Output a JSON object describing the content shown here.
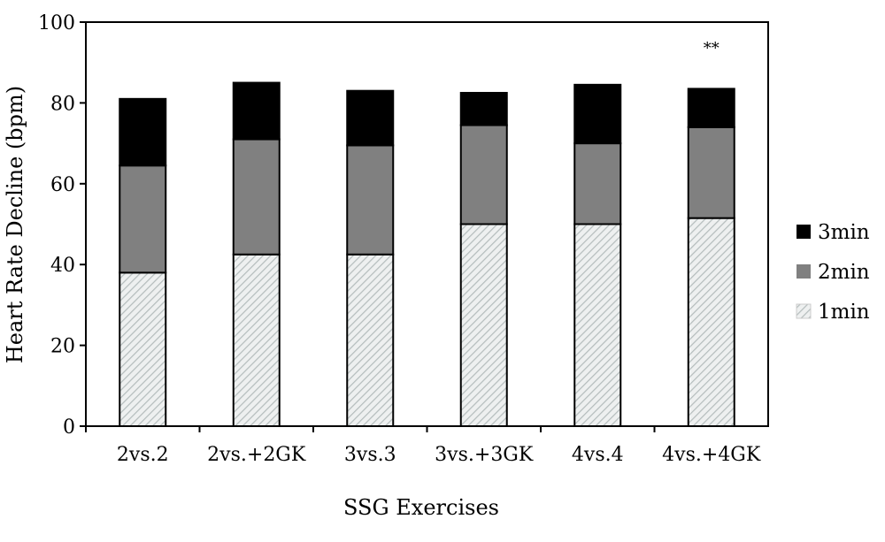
{
  "chart_data": {
    "type": "bar",
    "stacked": true,
    "title": "",
    "xlabel": "SSG Exercises",
    "ylabel": "Heart Rate Decline (bpm)",
    "ylim": [
      0,
      100
    ],
    "yticks": [
      0,
      20,
      40,
      60,
      80,
      100
    ],
    "grid": false,
    "legend_position": "right",
    "categories": [
      "2vs.2",
      "2vs.+2GK",
      "3vs.3",
      "3vs.+3GK",
      "4vs.4",
      "4vs.+4GK"
    ],
    "series": [
      {
        "name": "1min",
        "values": [
          38,
          42.5,
          42.5,
          50,
          50,
          51.5
        ],
        "color": "#e6e9e9",
        "pattern": "diagonal-hatch"
      },
      {
        "name": "2min",
        "values": [
          26.5,
          28.5,
          27,
          24.5,
          20,
          22.5
        ],
        "color": "#808080"
      },
      {
        "name": "3min",
        "values": [
          16.5,
          14,
          13.5,
          8,
          14.5,
          9.5
        ],
        "color": "#000000"
      }
    ],
    "legend_order": [
      "3min",
      "2min",
      "1min"
    ],
    "annotations": [
      {
        "category": "4vs.+4GK",
        "text": "**",
        "y": 94
      }
    ]
  }
}
